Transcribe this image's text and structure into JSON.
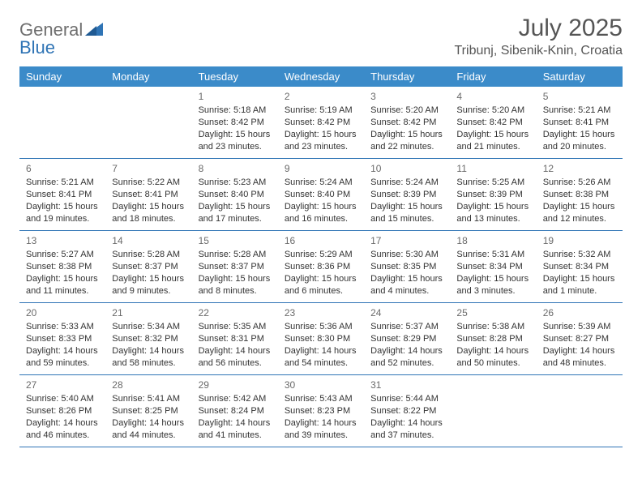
{
  "logo": {
    "textGeneral": "General",
    "textBlue": "Blue"
  },
  "title": "July 2025",
  "location": "Tribunj, Sibenik-Knin, Croatia",
  "colors": {
    "headerBg": "#3b8bc9",
    "headerText": "#ffffff",
    "cellBorder": "#2f74b5",
    "bodyText": "#333333",
    "logoGray": "#6f6f6f",
    "logoBlue": "#2f74b5"
  },
  "dayNames": [
    "Sunday",
    "Monday",
    "Tuesday",
    "Wednesday",
    "Thursday",
    "Friday",
    "Saturday"
  ],
  "weeks": [
    [
      null,
      null,
      {
        "n": "1",
        "sr": "Sunrise: 5:18 AM",
        "ss": "Sunset: 8:42 PM",
        "dl1": "Daylight: 15 hours",
        "dl2": "and 23 minutes."
      },
      {
        "n": "2",
        "sr": "Sunrise: 5:19 AM",
        "ss": "Sunset: 8:42 PM",
        "dl1": "Daylight: 15 hours",
        "dl2": "and 23 minutes."
      },
      {
        "n": "3",
        "sr": "Sunrise: 5:20 AM",
        "ss": "Sunset: 8:42 PM",
        "dl1": "Daylight: 15 hours",
        "dl2": "and 22 minutes."
      },
      {
        "n": "4",
        "sr": "Sunrise: 5:20 AM",
        "ss": "Sunset: 8:42 PM",
        "dl1": "Daylight: 15 hours",
        "dl2": "and 21 minutes."
      },
      {
        "n": "5",
        "sr": "Sunrise: 5:21 AM",
        "ss": "Sunset: 8:41 PM",
        "dl1": "Daylight: 15 hours",
        "dl2": "and 20 minutes."
      }
    ],
    [
      {
        "n": "6",
        "sr": "Sunrise: 5:21 AM",
        "ss": "Sunset: 8:41 PM",
        "dl1": "Daylight: 15 hours",
        "dl2": "and 19 minutes."
      },
      {
        "n": "7",
        "sr": "Sunrise: 5:22 AM",
        "ss": "Sunset: 8:41 PM",
        "dl1": "Daylight: 15 hours",
        "dl2": "and 18 minutes."
      },
      {
        "n": "8",
        "sr": "Sunrise: 5:23 AM",
        "ss": "Sunset: 8:40 PM",
        "dl1": "Daylight: 15 hours",
        "dl2": "and 17 minutes."
      },
      {
        "n": "9",
        "sr": "Sunrise: 5:24 AM",
        "ss": "Sunset: 8:40 PM",
        "dl1": "Daylight: 15 hours",
        "dl2": "and 16 minutes."
      },
      {
        "n": "10",
        "sr": "Sunrise: 5:24 AM",
        "ss": "Sunset: 8:39 PM",
        "dl1": "Daylight: 15 hours",
        "dl2": "and 15 minutes."
      },
      {
        "n": "11",
        "sr": "Sunrise: 5:25 AM",
        "ss": "Sunset: 8:39 PM",
        "dl1": "Daylight: 15 hours",
        "dl2": "and 13 minutes."
      },
      {
        "n": "12",
        "sr": "Sunrise: 5:26 AM",
        "ss": "Sunset: 8:38 PM",
        "dl1": "Daylight: 15 hours",
        "dl2": "and 12 minutes."
      }
    ],
    [
      {
        "n": "13",
        "sr": "Sunrise: 5:27 AM",
        "ss": "Sunset: 8:38 PM",
        "dl1": "Daylight: 15 hours",
        "dl2": "and 11 minutes."
      },
      {
        "n": "14",
        "sr": "Sunrise: 5:28 AM",
        "ss": "Sunset: 8:37 PM",
        "dl1": "Daylight: 15 hours",
        "dl2": "and 9 minutes."
      },
      {
        "n": "15",
        "sr": "Sunrise: 5:28 AM",
        "ss": "Sunset: 8:37 PM",
        "dl1": "Daylight: 15 hours",
        "dl2": "and 8 minutes."
      },
      {
        "n": "16",
        "sr": "Sunrise: 5:29 AM",
        "ss": "Sunset: 8:36 PM",
        "dl1": "Daylight: 15 hours",
        "dl2": "and 6 minutes."
      },
      {
        "n": "17",
        "sr": "Sunrise: 5:30 AM",
        "ss": "Sunset: 8:35 PM",
        "dl1": "Daylight: 15 hours",
        "dl2": "and 4 minutes."
      },
      {
        "n": "18",
        "sr": "Sunrise: 5:31 AM",
        "ss": "Sunset: 8:34 PM",
        "dl1": "Daylight: 15 hours",
        "dl2": "and 3 minutes."
      },
      {
        "n": "19",
        "sr": "Sunrise: 5:32 AM",
        "ss": "Sunset: 8:34 PM",
        "dl1": "Daylight: 15 hours",
        "dl2": "and 1 minute."
      }
    ],
    [
      {
        "n": "20",
        "sr": "Sunrise: 5:33 AM",
        "ss": "Sunset: 8:33 PM",
        "dl1": "Daylight: 14 hours",
        "dl2": "and 59 minutes."
      },
      {
        "n": "21",
        "sr": "Sunrise: 5:34 AM",
        "ss": "Sunset: 8:32 PM",
        "dl1": "Daylight: 14 hours",
        "dl2": "and 58 minutes."
      },
      {
        "n": "22",
        "sr": "Sunrise: 5:35 AM",
        "ss": "Sunset: 8:31 PM",
        "dl1": "Daylight: 14 hours",
        "dl2": "and 56 minutes."
      },
      {
        "n": "23",
        "sr": "Sunrise: 5:36 AM",
        "ss": "Sunset: 8:30 PM",
        "dl1": "Daylight: 14 hours",
        "dl2": "and 54 minutes."
      },
      {
        "n": "24",
        "sr": "Sunrise: 5:37 AM",
        "ss": "Sunset: 8:29 PM",
        "dl1": "Daylight: 14 hours",
        "dl2": "and 52 minutes."
      },
      {
        "n": "25",
        "sr": "Sunrise: 5:38 AM",
        "ss": "Sunset: 8:28 PM",
        "dl1": "Daylight: 14 hours",
        "dl2": "and 50 minutes."
      },
      {
        "n": "26",
        "sr": "Sunrise: 5:39 AM",
        "ss": "Sunset: 8:27 PM",
        "dl1": "Daylight: 14 hours",
        "dl2": "and 48 minutes."
      }
    ],
    [
      {
        "n": "27",
        "sr": "Sunrise: 5:40 AM",
        "ss": "Sunset: 8:26 PM",
        "dl1": "Daylight: 14 hours",
        "dl2": "and 46 minutes."
      },
      {
        "n": "28",
        "sr": "Sunrise: 5:41 AM",
        "ss": "Sunset: 8:25 PM",
        "dl1": "Daylight: 14 hours",
        "dl2": "and 44 minutes."
      },
      {
        "n": "29",
        "sr": "Sunrise: 5:42 AM",
        "ss": "Sunset: 8:24 PM",
        "dl1": "Daylight: 14 hours",
        "dl2": "and 41 minutes."
      },
      {
        "n": "30",
        "sr": "Sunrise: 5:43 AM",
        "ss": "Sunset: 8:23 PM",
        "dl1": "Daylight: 14 hours",
        "dl2": "and 39 minutes."
      },
      {
        "n": "31",
        "sr": "Sunrise: 5:44 AM",
        "ss": "Sunset: 8:22 PM",
        "dl1": "Daylight: 14 hours",
        "dl2": "and 37 minutes."
      },
      null,
      null
    ]
  ]
}
